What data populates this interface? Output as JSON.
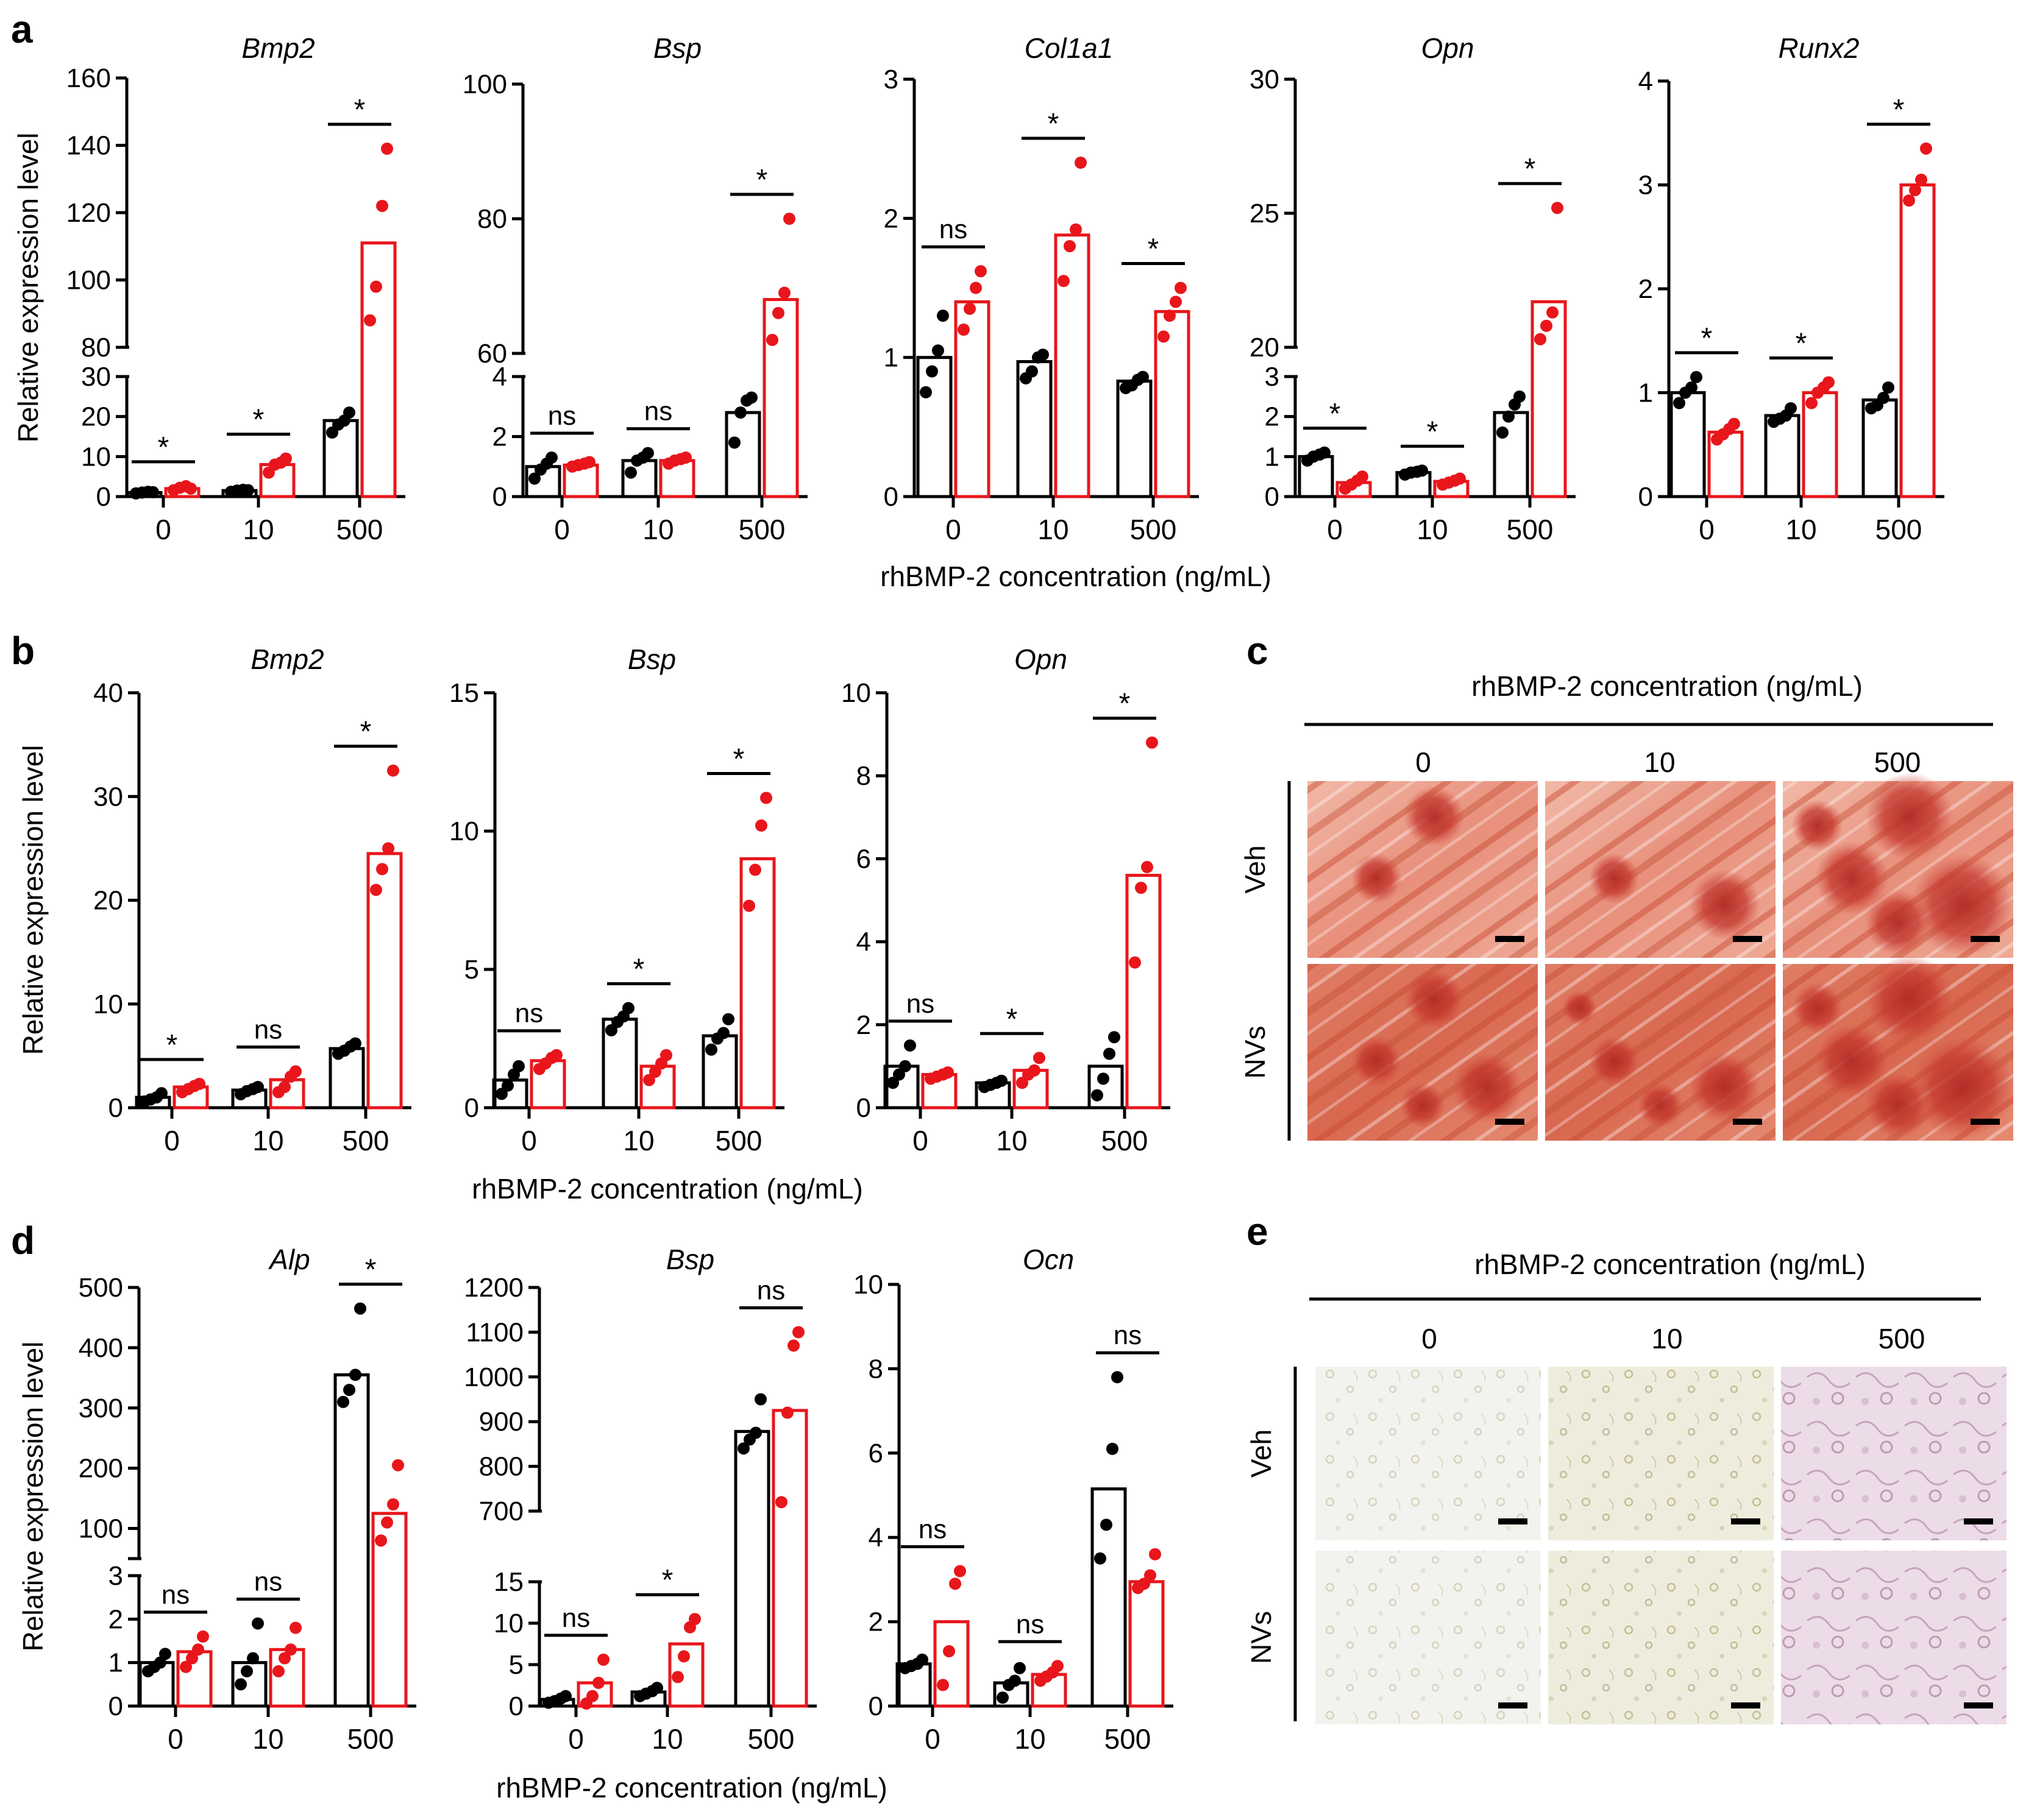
{
  "panel_labels": {
    "a": "a",
    "b": "b",
    "c": "c",
    "d": "d",
    "e": "e"
  },
  "colors": {
    "veh": "#000000",
    "nvs": "#e8161b"
  },
  "common": {
    "ylabel": "Relative  expression  level",
    "xlabel": "rhBMP-2 concentration (ng/mL)",
    "categories": [
      "0",
      "10",
      "500"
    ]
  },
  "chart_data": [
    {
      "id": "a1",
      "panel": "a",
      "type": "bar",
      "title": "Bmp2",
      "xlabel": "",
      "ylabel": "Relative  expression  level",
      "categories": [
        "0",
        "10",
        "500"
      ],
      "series": [
        {
          "name": "Veh",
          "values": [
            1,
            1.5,
            19
          ]
        },
        {
          "name": "NVs",
          "values": [
            2,
            8,
            111
          ]
        }
      ],
      "ylim": [
        0,
        160
      ],
      "axis_break": {
        "lower": [
          0,
          30
        ],
        "upper": [
          80,
          160
        ]
      },
      "yticks_lower": [
        0,
        10,
        20,
        30
      ],
      "yticks_upper": [
        80,
        100,
        120,
        140,
        160
      ],
      "points": [
        [
          [
            0.8,
            1.0,
            1.2,
            1.1
          ],
          [
            1.6,
            2.2,
            2.6,
            2.0
          ]
        ],
        [
          [
            1.2,
            1.5,
            1.7,
            1.6
          ],
          [
            6,
            8,
            8.5,
            9.5
          ]
        ],
        [
          [
            16,
            18,
            19,
            21
          ],
          [
            88,
            98,
            122,
            139
          ]
        ]
      ],
      "significance": [
        "*",
        "*",
        "*"
      ]
    },
    {
      "id": "a2",
      "panel": "a",
      "type": "bar",
      "title": "Bsp",
      "xlabel": "",
      "ylabel": "",
      "categories": [
        "0",
        "10",
        "500"
      ],
      "series": [
        {
          "name": "Veh",
          "values": [
            1,
            1.2,
            2.8
          ]
        },
        {
          "name": "NVs",
          "values": [
            1.05,
            1.2,
            68
          ]
        }
      ],
      "ylim": [
        0,
        100
      ],
      "axis_break": {
        "lower": [
          0,
          4
        ],
        "upper": [
          60,
          100
        ]
      },
      "yticks_lower": [
        0,
        2,
        4
      ],
      "yticks_upper": [
        60,
        80,
        100
      ],
      "points": [
        [
          [
            0.6,
            0.9,
            1.1,
            1.3
          ],
          [
            1.0,
            1.05,
            1.1,
            1.15
          ]
        ],
        [
          [
            0.8,
            1.2,
            1.3,
            1.45
          ],
          [
            1.1,
            1.2,
            1.25,
            1.3
          ]
        ],
        [
          [
            1.8,
            2.8,
            3.2,
            3.3
          ],
          [
            62,
            66,
            69,
            80
          ]
        ]
      ],
      "significance": [
        "ns",
        "ns",
        "*"
      ]
    },
    {
      "id": "a3",
      "panel": "a",
      "type": "bar",
      "title": "Col1a1",
      "xlabel": "rhBMP-2 concentration (ng/mL)",
      "ylabel": "",
      "categories": [
        "0",
        "10",
        "500"
      ],
      "series": [
        {
          "name": "Veh",
          "values": [
            1.0,
            0.97,
            0.83
          ]
        },
        {
          "name": "NVs",
          "values": [
            1.4,
            1.88,
            1.33
          ]
        }
      ],
      "ylim": [
        0,
        3
      ],
      "yticks": [
        0,
        1,
        2,
        3
      ],
      "points": [
        [
          [
            0.75,
            0.9,
            1.05,
            1.3
          ],
          [
            1.2,
            1.35,
            1.5,
            1.62
          ]
        ],
        [
          [
            0.85,
            0.9,
            1.0,
            1.02
          ],
          [
            1.55,
            1.8,
            1.92,
            2.4
          ]
        ],
        [
          [
            0.78,
            0.8,
            0.84,
            0.86
          ],
          [
            1.15,
            1.3,
            1.4,
            1.5
          ]
        ]
      ],
      "significance": [
        "ns",
        "*",
        "*"
      ]
    },
    {
      "id": "a4",
      "panel": "a",
      "type": "bar",
      "title": "Opn",
      "xlabel": "",
      "ylabel": "",
      "categories": [
        "0",
        "10",
        "500"
      ],
      "series": [
        {
          "name": "Veh",
          "values": [
            1.0,
            0.6,
            2.1
          ]
        },
        {
          "name": "NVs",
          "values": [
            0.35,
            0.38,
            21.7
          ]
        }
      ],
      "ylim": [
        0,
        30
      ],
      "axis_break": {
        "lower": [
          0,
          3
        ],
        "upper": [
          20,
          30
        ]
      },
      "yticks_lower": [
        0,
        1,
        2,
        3
      ],
      "yticks_upper": [
        20,
        25,
        30
      ],
      "points": [
        [
          [
            0.9,
            1.0,
            1.05,
            1.1
          ],
          [
            0.2,
            0.3,
            0.4,
            0.5
          ]
        ],
        [
          [
            0.55,
            0.6,
            0.62,
            0.65
          ],
          [
            0.3,
            0.35,
            0.4,
            0.45
          ]
        ],
        [
          [
            1.6,
            2.0,
            2.3,
            2.5
          ],
          [
            20.3,
            20.8,
            21.3,
            25.2
          ]
        ]
      ],
      "significance": [
        "*",
        "*",
        "*"
      ]
    },
    {
      "id": "a5",
      "panel": "a",
      "type": "bar",
      "title": "Runx2",
      "xlabel": "",
      "ylabel": "",
      "categories": [
        "0",
        "10",
        "500"
      ],
      "series": [
        {
          "name": "Veh",
          "values": [
            1.0,
            0.78,
            0.93
          ]
        },
        {
          "name": "NVs",
          "values": [
            0.62,
            1.0,
            3.0
          ]
        }
      ],
      "ylim": [
        0,
        4
      ],
      "yticks": [
        0,
        1,
        2,
        3,
        4
      ],
      "points": [
        [
          [
            0.9,
            1.0,
            1.05,
            1.15
          ],
          [
            0.55,
            0.6,
            0.65,
            0.7
          ]
        ],
        [
          [
            0.72,
            0.75,
            0.78,
            0.85
          ],
          [
            0.9,
            1.0,
            1.05,
            1.1
          ]
        ],
        [
          [
            0.85,
            0.88,
            0.95,
            1.05
          ],
          [
            2.85,
            2.95,
            3.05,
            3.35
          ]
        ]
      ],
      "significance": [
        "*",
        "*",
        "*"
      ]
    },
    {
      "id": "b1",
      "panel": "b",
      "type": "bar",
      "title": "Bmp2",
      "xlabel": "",
      "ylabel": "Relative  expression  level",
      "categories": [
        "0",
        "10",
        "500"
      ],
      "series": [
        {
          "name": "Veh",
          "values": [
            1.0,
            1.7,
            5.7
          ]
        },
        {
          "name": "NVs",
          "values": [
            2.0,
            2.7,
            24.5
          ]
        }
      ],
      "ylim": [
        0,
        40
      ],
      "yticks": [
        0,
        10,
        20,
        30,
        40
      ],
      "points": [
        [
          [
            0.6,
            0.8,
            1.0,
            1.4
          ],
          [
            1.5,
            1.8,
            2.1,
            2.3
          ]
        ],
        [
          [
            1.3,
            1.6,
            1.8,
            2.0
          ],
          [
            1.5,
            2.0,
            3.0,
            3.5
          ]
        ],
        [
          [
            5.2,
            5.5,
            5.9,
            6.2
          ],
          [
            21,
            23,
            25,
            32.5
          ]
        ]
      ],
      "significance": [
        "*",
        "ns",
        "*"
      ]
    },
    {
      "id": "b2",
      "panel": "b",
      "type": "bar",
      "title": "Bsp",
      "xlabel": "rhBMP-2 concentration (ng/mL)",
      "ylabel": "",
      "categories": [
        "0",
        "10",
        "500"
      ],
      "series": [
        {
          "name": "Veh",
          "values": [
            1.0,
            3.2,
            2.6
          ]
        },
        {
          "name": "NVs",
          "values": [
            1.7,
            1.5,
            9.0
          ]
        }
      ],
      "ylim": [
        0,
        15
      ],
      "yticks": [
        0,
        5,
        10,
        15
      ],
      "points": [
        [
          [
            0.5,
            0.8,
            1.2,
            1.5
          ],
          [
            1.4,
            1.6,
            1.8,
            1.9
          ]
        ],
        [
          [
            2.8,
            3.1,
            3.3,
            3.6
          ],
          [
            1.0,
            1.3,
            1.6,
            1.9
          ]
        ],
        [
          [
            2.1,
            2.5,
            2.7,
            3.2
          ],
          [
            7.3,
            8.6,
            10.2,
            11.2
          ]
        ]
      ],
      "significance": [
        "ns",
        "*",
        "*"
      ]
    },
    {
      "id": "b3",
      "panel": "b",
      "type": "bar",
      "title": "Opn",
      "xlabel": "",
      "ylabel": "",
      "categories": [
        "0",
        "10",
        "500"
      ],
      "series": [
        {
          "name": "Veh",
          "values": [
            1.0,
            0.6,
            1.0
          ]
        },
        {
          "name": "NVs",
          "values": [
            0.8,
            0.9,
            5.6
          ]
        }
      ],
      "ylim": [
        0,
        10
      ],
      "yticks": [
        0,
        2,
        4,
        6,
        8,
        10
      ],
      "points": [
        [
          [
            0.6,
            0.8,
            1.0,
            1.5
          ],
          [
            0.7,
            0.75,
            0.8,
            0.85
          ]
        ],
        [
          [
            0.5,
            0.55,
            0.6,
            0.65
          ],
          [
            0.6,
            0.8,
            0.9,
            1.2
          ]
        ],
        [
          [
            0.3,
            0.7,
            1.3,
            1.7
          ],
          [
            3.5,
            5.3,
            5.8,
            8.8
          ]
        ]
      ],
      "significance": [
        "ns",
        "*",
        "*"
      ]
    },
    {
      "id": "d1",
      "panel": "d",
      "type": "bar",
      "title": "Alp",
      "xlabel": "",
      "ylabel": "Relative  expression  level",
      "categories": [
        "0",
        "10",
        "500"
      ],
      "series": [
        {
          "name": "Veh",
          "values": [
            1.0,
            1.0,
            355
          ]
        },
        {
          "name": "NVs",
          "values": [
            1.25,
            1.3,
            125
          ]
        }
      ],
      "ylim": [
        0,
        500
      ],
      "axis_break": {
        "lower": [
          0,
          3
        ],
        "upper": [
          50,
          500
        ]
      },
      "yticks_lower": [
        0,
        1,
        2,
        3
      ],
      "yticks_upper": [
        100,
        200,
        300,
        400,
        500
      ],
      "points": [
        [
          [
            0.8,
            0.9,
            1.0,
            1.2
          ],
          [
            0.9,
            1.1,
            1.3,
            1.6
          ]
        ],
        [
          [
            0.5,
            0.8,
            1.1,
            1.9
          ],
          [
            0.8,
            1.1,
            1.3,
            1.8
          ]
        ],
        [
          [
            310,
            330,
            355,
            465
          ],
          [
            80,
            110,
            140,
            205
          ]
        ]
      ],
      "significance": [
        "ns",
        "ns",
        "*"
      ]
    },
    {
      "id": "d2",
      "panel": "d",
      "type": "bar",
      "title": "Bsp",
      "xlabel": "rhBMP-2 concentration (ng/mL)",
      "ylabel": "",
      "categories": [
        "0",
        "10",
        "500"
      ],
      "series": [
        {
          "name": "Veh",
          "values": [
            0.8,
            1.7,
            878
          ]
        },
        {
          "name": "NVs",
          "values": [
            2.8,
            7.5,
            925
          ]
        }
      ],
      "ylim": [
        0,
        1200
      ],
      "axis_break": {
        "lower": [
          0,
          15
        ],
        "upper": [
          700,
          1200
        ]
      },
      "yticks_lower": [
        0,
        5,
        10,
        15
      ],
      "yticks_upper": [
        700,
        800,
        900,
        1000,
        1100,
        1200
      ],
      "points": [
        [
          [
            0.4,
            0.6,
            0.9,
            1.2
          ],
          [
            0.3,
            1.2,
            2.8,
            5.6
          ]
        ],
        [
          [
            1.2,
            1.5,
            1.8,
            2.2
          ],
          [
            3.5,
            6,
            9.5,
            10.5
          ]
        ],
        [
          [
            840,
            860,
            875,
            950
          ],
          [
            720,
            920,
            1070,
            1100
          ]
        ]
      ],
      "significance": [
        "ns",
        "*",
        "ns"
      ]
    },
    {
      "id": "d3",
      "panel": "d",
      "type": "bar",
      "title": "Ocn",
      "xlabel": "",
      "ylabel": "",
      "categories": [
        "0",
        "10",
        "500"
      ],
      "series": [
        {
          "name": "Veh",
          "values": [
            1.0,
            0.55,
            5.15
          ]
        },
        {
          "name": "NVs",
          "values": [
            2.0,
            0.75,
            2.95
          ]
        }
      ],
      "ylim": [
        0,
        10
      ],
      "yticks": [
        0,
        2,
        4,
        6,
        8,
        10
      ],
      "points": [
        [
          [
            0.9,
            0.95,
            1.0,
            1.1
          ],
          [
            0.5,
            1.3,
            2.9,
            3.2
          ]
        ],
        [
          [
            0.2,
            0.5,
            0.6,
            0.9
          ],
          [
            0.6,
            0.7,
            0.8,
            0.95
          ]
        ],
        [
          [
            3.5,
            4.3,
            6.1,
            7.8
          ],
          [
            2.8,
            2.9,
            3.1,
            3.6
          ]
        ]
      ],
      "significance": [
        "ns",
        "ns",
        "ns"
      ]
    }
  ],
  "image_grids": [
    {
      "id": "c",
      "panel": "c",
      "title": "rhBMP-2 concentration (ng/mL)",
      "columns": [
        "0",
        "10",
        "500"
      ],
      "rows": [
        "Veh",
        "NVs"
      ]
    },
    {
      "id": "e",
      "panel": "e",
      "title": "rhBMP-2 concentration (ng/mL)",
      "columns": [
        "0",
        "10",
        "500"
      ],
      "rows": [
        "Veh",
        "NVs"
      ]
    }
  ]
}
